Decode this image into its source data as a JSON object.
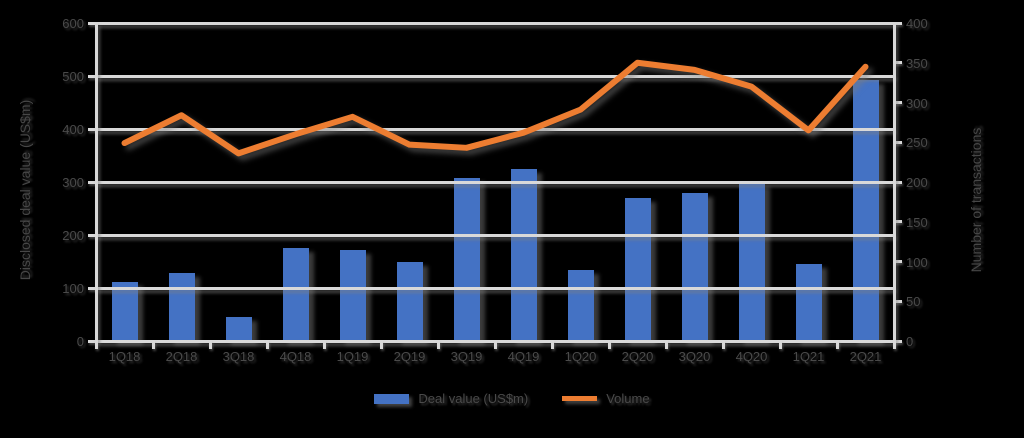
{
  "chart_data": {
    "type": "combo",
    "categories": [
      "1Q18",
      "2Q18",
      "3Q18",
      "4Q18",
      "1Q19",
      "2Q19",
      "3Q19",
      "4Q19",
      "1Q20",
      "2Q20",
      "3Q20",
      "4Q20",
      "1Q21",
      "2Q21"
    ],
    "series": [
      {
        "name": "Deal value (US$m)",
        "type": "bar",
        "axis": "left",
        "color": "#4472C4",
        "values": [
          111,
          128,
          45,
          175,
          172,
          149,
          308,
          325,
          134,
          270,
          279,
          298,
          145,
          492
        ]
      },
      {
        "name": "Volume",
        "type": "line",
        "axis": "right",
        "color": "#ED7D31",
        "values": [
          249,
          284,
          236,
          260,
          282,
          247,
          243,
          262,
          291,
          350,
          341,
          320,
          265,
          345
        ]
      }
    ],
    "left_axis": {
      "title": "Disclosed deal value (US$m)",
      "min": 0,
      "max": 600,
      "step": 100,
      "tick_labels": [
        "600",
        "500",
        "400",
        "300",
        "200",
        "100",
        "0"
      ]
    },
    "right_axis": {
      "title": "Number of transactions",
      "min": 0,
      "max": 400,
      "step": 50,
      "tick_labels": [
        "400",
        "350",
        "300",
        "250",
        "200",
        "150",
        "100",
        "50",
        "0"
      ]
    },
    "title": "",
    "grid": true,
    "legend_position": "bottom",
    "background_color": "#000000",
    "gridline_color": "#D9D9D9",
    "text_color": "#4A4A4A"
  }
}
